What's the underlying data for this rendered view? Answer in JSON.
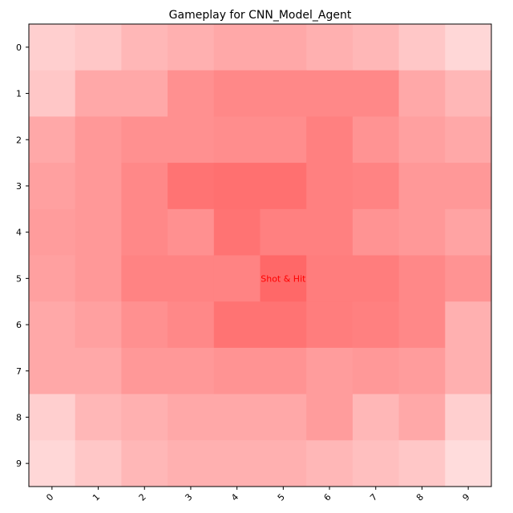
{
  "title": "Gameplay for CNN_Model_Agent",
  "annotation": {
    "row": 5,
    "col": 5,
    "text": "Shot & Hit",
    "color": "#ff0000"
  },
  "chart_data": {
    "type": "heatmap",
    "title": "Gameplay for CNN_Model_Agent",
    "rows": 10,
    "cols": 10,
    "x_tick_labels": [
      "0",
      "1",
      "2",
      "3",
      "4",
      "5",
      "6",
      "7",
      "8",
      "9"
    ],
    "y_tick_labels": [
      "0",
      "1",
      "2",
      "3",
      "4",
      "5",
      "6",
      "7",
      "8",
      "9"
    ],
    "color_low": "#ffffff",
    "color_high": "#ff6060",
    "values": [
      [
        0.3,
        0.35,
        0.45,
        0.5,
        0.55,
        0.55,
        0.5,
        0.45,
        0.35,
        0.25
      ],
      [
        0.35,
        0.55,
        0.55,
        0.7,
        0.75,
        0.75,
        0.75,
        0.75,
        0.55,
        0.45
      ],
      [
        0.55,
        0.65,
        0.7,
        0.7,
        0.72,
        0.72,
        0.8,
        0.68,
        0.6,
        0.55
      ],
      [
        0.6,
        0.65,
        0.75,
        0.88,
        0.9,
        0.9,
        0.8,
        0.78,
        0.65,
        0.65
      ],
      [
        0.62,
        0.65,
        0.75,
        0.7,
        0.88,
        0.8,
        0.8,
        0.68,
        0.65,
        0.58
      ],
      [
        0.6,
        0.65,
        0.78,
        0.78,
        0.78,
        0.95,
        0.82,
        0.82,
        0.75,
        0.68
      ],
      [
        0.55,
        0.6,
        0.7,
        0.75,
        0.88,
        0.88,
        0.82,
        0.8,
        0.75,
        0.5
      ],
      [
        0.55,
        0.55,
        0.65,
        0.65,
        0.68,
        0.68,
        0.62,
        0.65,
        0.62,
        0.5
      ],
      [
        0.3,
        0.45,
        0.5,
        0.55,
        0.55,
        0.55,
        0.62,
        0.45,
        0.55,
        0.3
      ],
      [
        0.25,
        0.35,
        0.45,
        0.5,
        0.5,
        0.5,
        0.45,
        0.4,
        0.35,
        0.22
      ]
    ]
  }
}
